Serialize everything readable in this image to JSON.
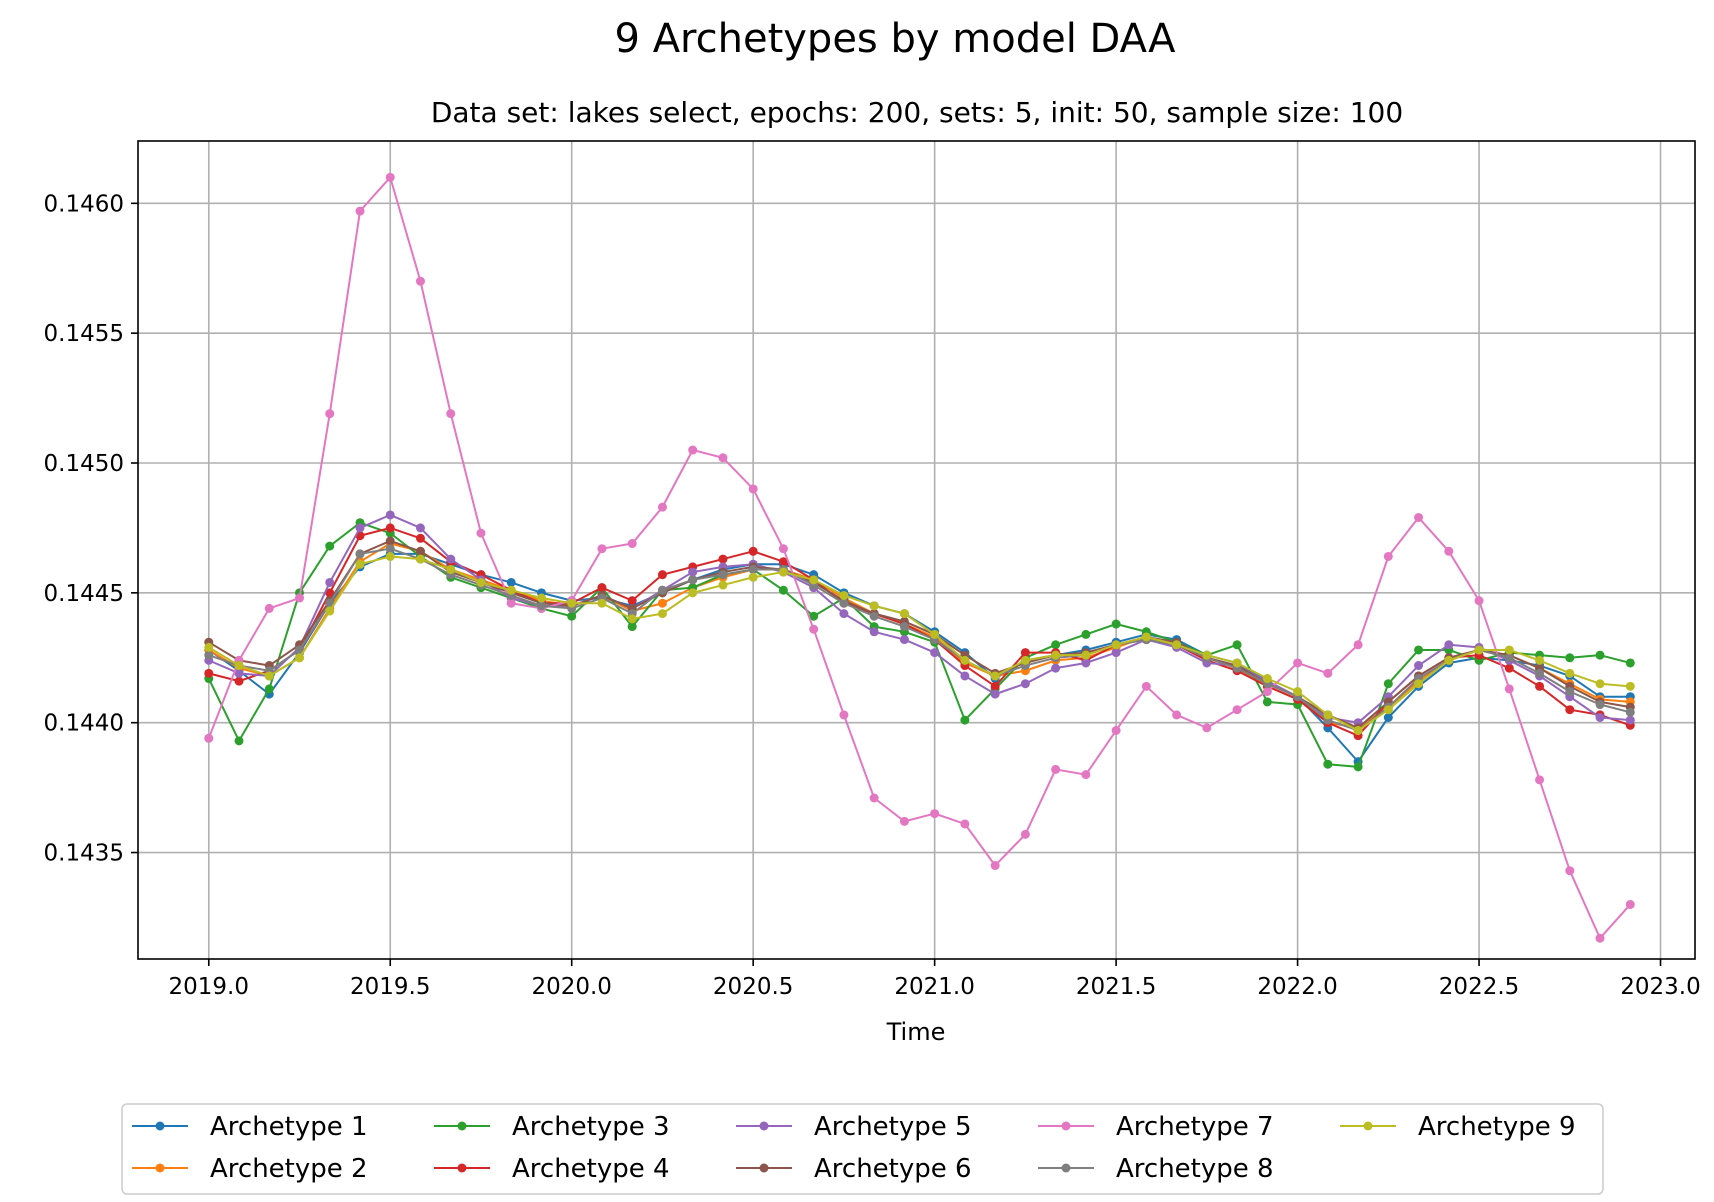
{
  "chart_data": {
    "type": "line",
    "title": "9 Archetypes by model DAA",
    "subtitle": "Data set: lakes select, epochs: 200, sets: 5, init: 50, sample size: 100",
    "xlabel": "Time",
    "ylabel": "",
    "xlim": [
      2018.805,
      2023.095
    ],
    "ylim": [
      0.14309,
      0.14624
    ],
    "xticks": [
      2019.0,
      2019.5,
      2020.0,
      2020.5,
      2021.0,
      2021.5,
      2022.0,
      2022.5,
      2023.0
    ],
    "xtick_labels": [
      "2019.0",
      "2019.5",
      "2020.0",
      "2020.5",
      "2021.0",
      "2021.5",
      "2022.0",
      "2022.5",
      "2023.0"
    ],
    "yticks": [
      0.1435,
      0.144,
      0.1445,
      0.145,
      0.1455,
      0.146
    ],
    "ytick_labels": [
      "0.1435",
      "0.1440",
      "0.1445",
      "0.1450",
      "0.1455",
      "0.1460"
    ],
    "grid": true,
    "legend": "bottom-center",
    "x": [
      2019.0,
      2019.0833,
      2019.1667,
      2019.25,
      2019.3333,
      2019.4167,
      2019.5,
      2019.5833,
      2019.6667,
      2019.75,
      2019.8333,
      2019.9167,
      2020.0,
      2020.0833,
      2020.1667,
      2020.25,
      2020.3333,
      2020.4167,
      2020.5,
      2020.5833,
      2020.6667,
      2020.75,
      2020.8333,
      2020.9167,
      2021.0,
      2021.0833,
      2021.1667,
      2021.25,
      2021.3333,
      2021.4167,
      2021.5,
      2021.5833,
      2021.6667,
      2021.75,
      2021.8333,
      2021.9167,
      2022.0,
      2022.0833,
      2022.1667,
      2022.25,
      2022.3333,
      2022.4167,
      2022.5,
      2022.5833,
      2022.6667,
      2022.75,
      2022.8333,
      2022.9167
    ],
    "series": [
      {
        "name": "Archetype 1",
        "color": "#1f77b4",
        "values": [
          0.14428,
          0.1442,
          0.14411,
          0.14427,
          0.14446,
          0.1446,
          0.14465,
          0.14465,
          0.14461,
          0.14457,
          0.14454,
          0.1445,
          0.14447,
          0.14448,
          0.14445,
          0.1445,
          0.14455,
          0.14459,
          0.14461,
          0.14461,
          0.14457,
          0.1445,
          0.14445,
          0.14442,
          0.14435,
          0.14427,
          0.14417,
          0.14424,
          0.14426,
          0.14428,
          0.14431,
          0.14434,
          0.14432,
          0.14426,
          0.14423,
          0.14416,
          0.1441,
          0.14398,
          0.14385,
          0.14402,
          0.14414,
          0.14423,
          0.14425,
          0.14424,
          0.14422,
          0.14418,
          0.1441,
          0.1441
        ]
      },
      {
        "name": "Archetype 2",
        "color": "#ff7f0e",
        "values": [
          0.14428,
          0.14421,
          0.14418,
          0.14425,
          0.14444,
          0.14462,
          0.14469,
          0.14466,
          0.14459,
          0.14455,
          0.14451,
          0.14447,
          0.14445,
          0.14449,
          0.14443,
          0.14446,
          0.14452,
          0.14456,
          0.14459,
          0.14459,
          0.14455,
          0.14448,
          0.14442,
          0.14438,
          0.14433,
          0.14423,
          0.14418,
          0.1442,
          0.14424,
          0.14425,
          0.14429,
          0.14433,
          0.1443,
          0.14425,
          0.14421,
          0.14414,
          0.14409,
          0.144,
          0.14398,
          0.14406,
          0.14416,
          0.14424,
          0.14428,
          0.14426,
          0.14421,
          0.14415,
          0.14409,
          0.14408
        ]
      },
      {
        "name": "Archetype 3",
        "color": "#2ca02c",
        "values": [
          0.14417,
          0.14393,
          0.14413,
          0.1445,
          0.14468,
          0.14477,
          0.14473,
          0.14464,
          0.14456,
          0.14452,
          0.14448,
          0.14444,
          0.14441,
          0.14452,
          0.14437,
          0.14451,
          0.14452,
          0.14457,
          0.14459,
          0.14451,
          0.14441,
          0.14448,
          0.14437,
          0.14435,
          0.14431,
          0.14401,
          0.14413,
          0.14425,
          0.1443,
          0.14434,
          0.14438,
          0.14435,
          0.14431,
          0.14426,
          0.1443,
          0.14408,
          0.14407,
          0.14384,
          0.14383,
          0.14415,
          0.14428,
          0.14428,
          0.14424,
          0.14427,
          0.14426,
          0.14425,
          0.14426,
          0.14423
        ]
      },
      {
        "name": "Archetype 4",
        "color": "#d62728",
        "values": [
          0.14419,
          0.14416,
          0.1442,
          0.14428,
          0.1445,
          0.14472,
          0.14475,
          0.14471,
          0.14462,
          0.14457,
          0.14451,
          0.14446,
          0.14446,
          0.14452,
          0.14447,
          0.14457,
          0.1446,
          0.14463,
          0.14466,
          0.14462,
          0.14455,
          0.14446,
          0.14442,
          0.14438,
          0.14432,
          0.14422,
          0.14414,
          0.14427,
          0.14427,
          0.14424,
          0.1443,
          0.14432,
          0.1443,
          0.14424,
          0.1442,
          0.14414,
          0.14409,
          0.144,
          0.14395,
          0.14408,
          0.14418,
          0.14425,
          0.14426,
          0.14421,
          0.14414,
          0.14405,
          0.14403,
          0.14399
        ]
      },
      {
        "name": "Archetype 5",
        "color": "#9467bd",
        "values": [
          0.14424,
          0.14419,
          0.14418,
          0.14429,
          0.14454,
          0.14475,
          0.1448,
          0.14475,
          0.14463,
          0.14455,
          0.14448,
          0.14445,
          0.14445,
          0.14449,
          0.14444,
          0.14451,
          0.14458,
          0.1446,
          0.14461,
          0.14458,
          0.14452,
          0.14442,
          0.14435,
          0.14432,
          0.14427,
          0.14418,
          0.14411,
          0.14415,
          0.14421,
          0.14423,
          0.14427,
          0.14432,
          0.14429,
          0.14423,
          0.14422,
          0.14416,
          0.1441,
          0.14402,
          0.144,
          0.1441,
          0.14422,
          0.1443,
          0.14429,
          0.14424,
          0.14418,
          0.1441,
          0.14402,
          0.14401
        ]
      },
      {
        "name": "Archetype 6",
        "color": "#8c564b",
        "values": [
          0.14431,
          0.14424,
          0.14422,
          0.1443,
          0.14447,
          0.14465,
          0.1447,
          0.14466,
          0.14458,
          0.14454,
          0.1445,
          0.14446,
          0.14445,
          0.14449,
          0.14444,
          0.1445,
          0.14455,
          0.14458,
          0.1446,
          0.14459,
          0.14454,
          0.14447,
          0.14442,
          0.14439,
          0.14434,
          0.14426,
          0.14419,
          0.14423,
          0.14426,
          0.14427,
          0.1443,
          0.14433,
          0.14431,
          0.14425,
          0.14422,
          0.14415,
          0.1441,
          0.14403,
          0.14398,
          0.14408,
          0.14418,
          0.14425,
          0.14428,
          0.14426,
          0.14421,
          0.14414,
          0.14408,
          0.14406
        ]
      },
      {
        "name": "Archetype 7",
        "color": "#e377c2",
        "values": [
          0.14394,
          0.14424,
          0.14444,
          0.14448,
          0.14519,
          0.14597,
          0.1461,
          0.1457,
          0.14519,
          0.14473,
          0.14446,
          0.14444,
          0.14447,
          0.14467,
          0.14469,
          0.14483,
          0.14505,
          0.14502,
          0.1449,
          0.14467,
          0.14436,
          0.14403,
          0.14371,
          0.14362,
          0.14365,
          0.14361,
          0.14345,
          0.14357,
          0.14382,
          0.1438,
          0.14397,
          0.14414,
          0.14403,
          0.14398,
          0.14405,
          0.14412,
          0.14423,
          0.14419,
          0.1443,
          0.14464,
          0.14479,
          0.14466,
          0.14447,
          0.14413,
          0.14378,
          0.14343,
          0.14317,
          0.1433
        ]
      },
      {
        "name": "Archetype 8",
        "color": "#7f7f7f",
        "values": [
          0.14426,
          0.14422,
          0.1442,
          0.14428,
          0.14446,
          0.14465,
          0.14467,
          0.14463,
          0.14457,
          0.14453,
          0.14449,
          0.14445,
          0.14444,
          0.14448,
          0.14442,
          0.14451,
          0.14455,
          0.14457,
          0.14459,
          0.14459,
          0.14453,
          0.14446,
          0.14441,
          0.14437,
          0.14432,
          0.14424,
          0.14418,
          0.14422,
          0.14425,
          0.14426,
          0.1443,
          0.14432,
          0.1443,
          0.14425,
          0.14421,
          0.14415,
          0.1441,
          0.14401,
          0.14397,
          0.14406,
          0.14417,
          0.14424,
          0.14428,
          0.14425,
          0.14419,
          0.14412,
          0.14407,
          0.14404
        ]
      },
      {
        "name": "Archetype 9",
        "color": "#bcbd22",
        "values": [
          0.14429,
          0.14422,
          0.14418,
          0.14425,
          0.14443,
          0.14461,
          0.14464,
          0.14463,
          0.14459,
          0.14454,
          0.14451,
          0.14448,
          0.14446,
          0.14446,
          0.1444,
          0.14442,
          0.1445,
          0.14453,
          0.14456,
          0.14458,
          0.14455,
          0.14449,
          0.14445,
          0.14442,
          0.14434,
          0.14424,
          0.14418,
          0.14424,
          0.14426,
          0.14426,
          0.1443,
          0.14433,
          0.1443,
          0.14426,
          0.14423,
          0.14417,
          0.14412,
          0.14403,
          0.14397,
          0.14405,
          0.14415,
          0.14424,
          0.14428,
          0.14428,
          0.14424,
          0.14419,
          0.14415,
          0.14414
        ]
      }
    ]
  }
}
